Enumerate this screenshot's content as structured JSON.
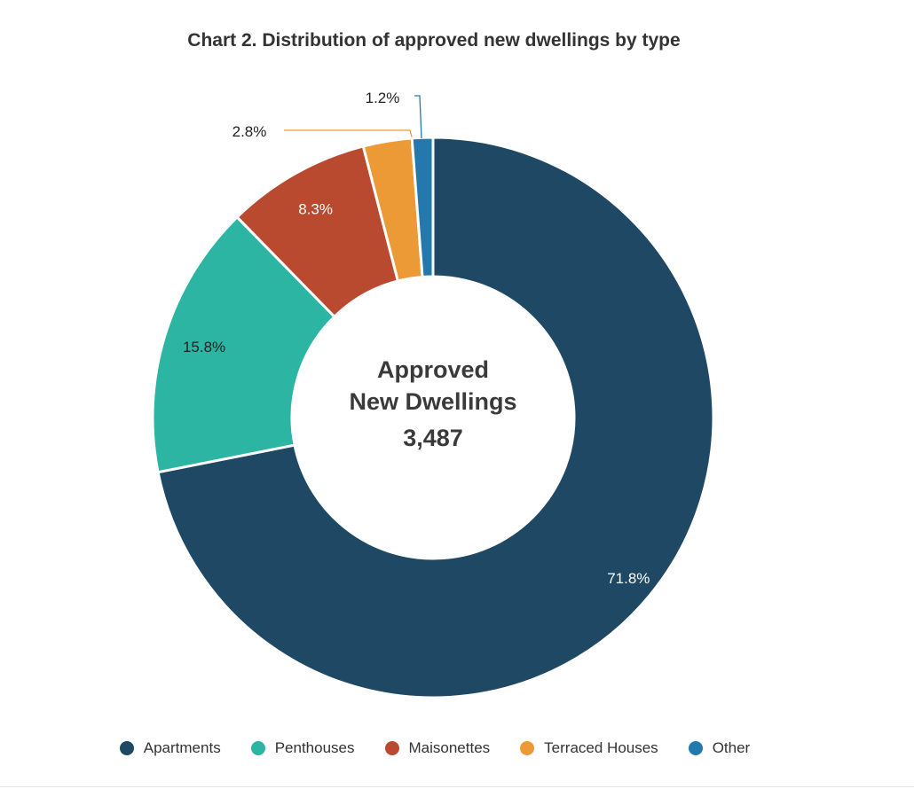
{
  "chart_data": {
    "type": "pie",
    "variant": "donut",
    "title": "Chart 2. Distribution of approved new dwellings by type",
    "center_label": {
      "line1": "Approved",
      "line2": "New Dwellings",
      "value": "3,487"
    },
    "categories": [
      "Apartments",
      "Penthouses",
      "Maisonettes",
      "Terraced Houses",
      "Other"
    ],
    "values": [
      71.8,
      15.8,
      8.3,
      2.8,
      1.2
    ],
    "labels": [
      "71.8%",
      "15.8%",
      "8.3%",
      "2.8%",
      "1.2%"
    ],
    "colors": [
      "#1e4863",
      "#2bb5a2",
      "#b94a30",
      "#ec9a35",
      "#2379ad"
    ],
    "legend_position": "bottom"
  }
}
